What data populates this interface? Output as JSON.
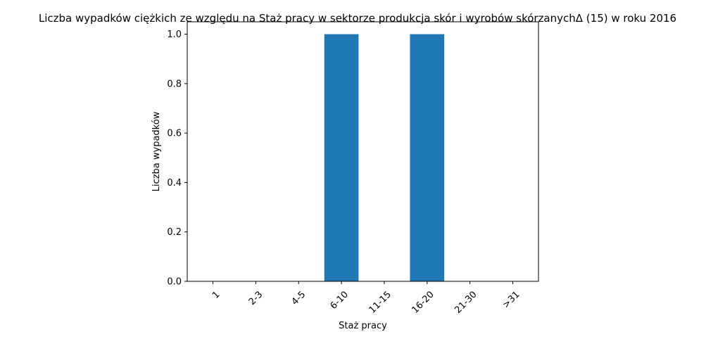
{
  "chart_data": {
    "type": "bar",
    "title": "Liczba wypadków ciężkich ze względu na Staż pracy w sektorze produkcja skór i wyrobów skórzanychΔ (15) w roku 2016",
    "xlabel": "Staż pracy",
    "ylabel": "Liczba wypadków",
    "categories": [
      "1",
      "2-3",
      "4-5",
      "6-10",
      "11-15",
      "16-20",
      "21-30",
      ">31"
    ],
    "values": [
      0,
      0,
      0,
      1,
      0,
      1,
      0,
      0
    ],
    "ylim": [
      0,
      1.05
    ],
    "yticks": [
      "0.0",
      "0.2",
      "0.4",
      "0.6",
      "0.8",
      "1.0"
    ],
    "bar_color": "#1f77b4",
    "grid": false,
    "legend": false
  }
}
